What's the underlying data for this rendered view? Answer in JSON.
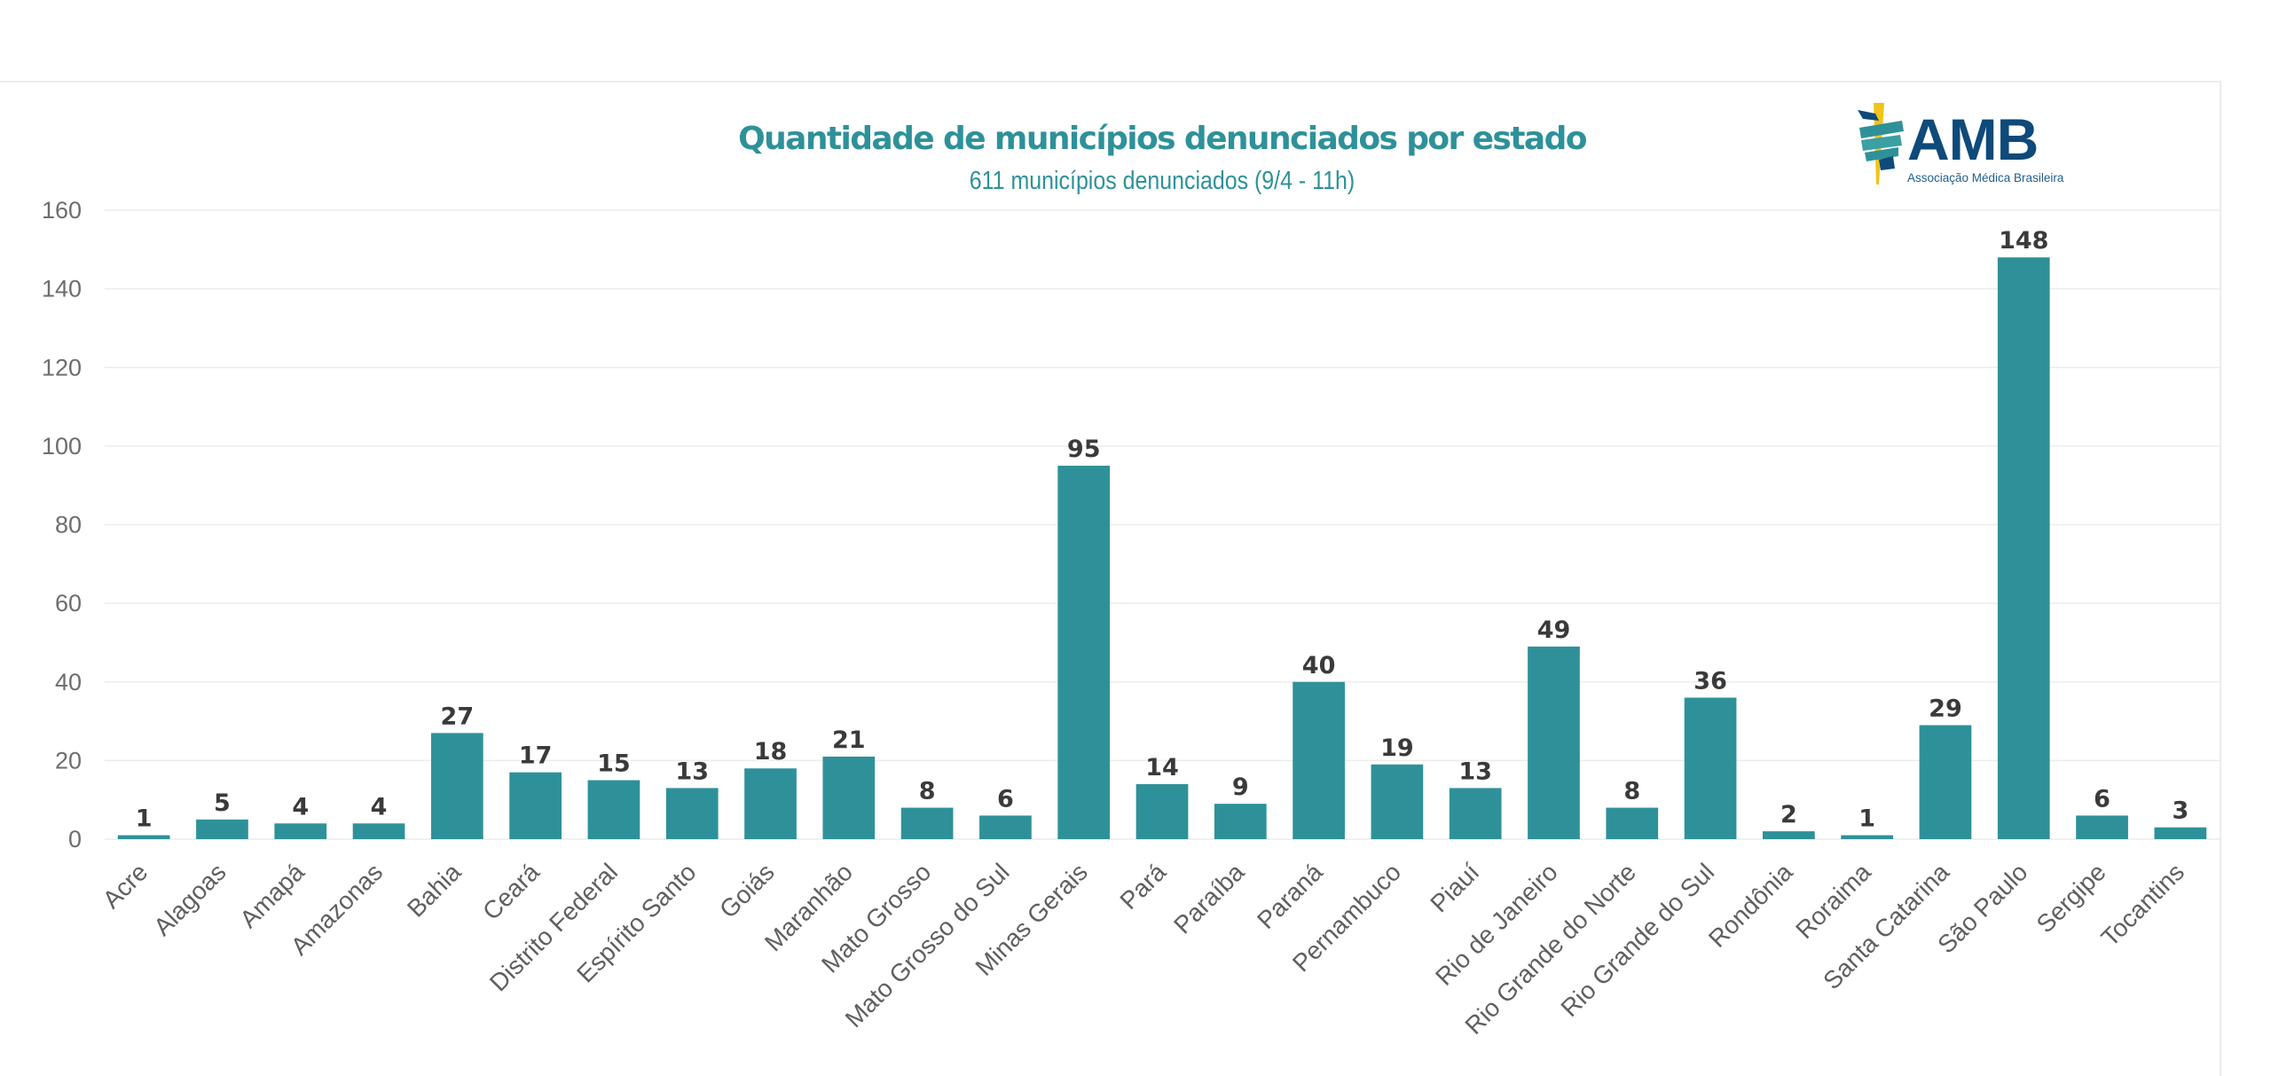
{
  "header": {
    "title": "Quantidade de municípios denunciados por estado",
    "subtitle": "611 municípios denunciados (9/4 - 11h)"
  },
  "logo": {
    "icon": "caduceus-icon",
    "name": "AMB",
    "tagline": "Associação Médica Brasileira",
    "colors": {
      "navy": "#0e4a7a",
      "teal": "#2e9199",
      "yellow": "#f2c318"
    }
  },
  "colors": {
    "bar": "#2e9199",
    "title": "#2e9199",
    "data_label": "#3a3a3a",
    "axis_text": "#6d6d6d",
    "grid": "#ececec"
  },
  "chart_data": {
    "type": "bar",
    "title": "Quantidade de municípios denunciados por estado",
    "subtitle": "611 municípios denunciados (9/4 - 11h)",
    "xlabel": "",
    "ylabel": "",
    "ylim": [
      0,
      160
    ],
    "yticks": [
      0,
      20,
      40,
      60,
      80,
      100,
      120,
      140,
      160
    ],
    "grid": true,
    "legend": "none",
    "data_labels": true,
    "categories": [
      "Acre",
      "Alagoas",
      "Amapá",
      "Amazonas",
      "Bahia",
      "Ceará",
      "Distrito Federal",
      "Espírito Santo",
      "Goiás",
      "Maranhão",
      "Mato Grosso",
      "Mato Grosso do Sul",
      "Minas Gerais",
      "Pará",
      "Paraíba",
      "Paraná",
      "Pernambuco",
      "Piauí",
      "Rio de Janeiro",
      "Rio Grande do Norte",
      "Rio Grande do Sul",
      "Rondônia",
      "Roraima",
      "Santa Catarina",
      "São Paulo",
      "Sergipe",
      "Tocantins"
    ],
    "values": [
      1,
      5,
      4,
      4,
      27,
      17,
      15,
      13,
      18,
      21,
      8,
      6,
      95,
      14,
      9,
      40,
      19,
      13,
      49,
      8,
      36,
      2,
      1,
      29,
      148,
      6,
      3
    ]
  }
}
